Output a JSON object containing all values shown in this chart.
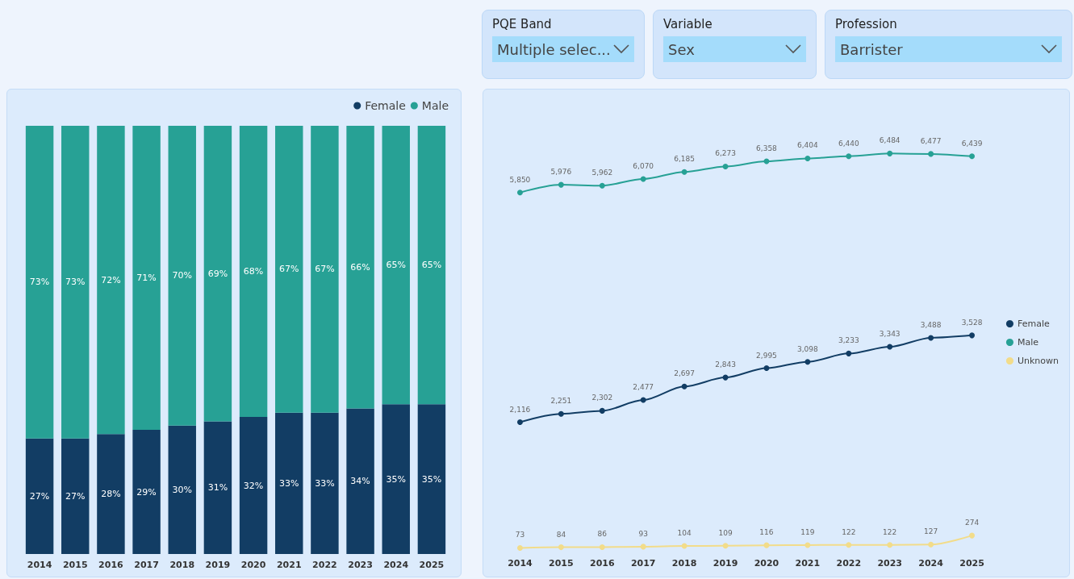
{
  "chart_data": [
    {
      "type": "other",
      "annotations": [
        "PQE Band",
        "Multiple selec...",
        "Variable",
        "Sex",
        "Profession",
        "Barrister"
      ]
    },
    {
      "type": "bar",
      "stacked": true,
      "legend": "top right",
      "categories": [
        "2014",
        "2015",
        "2016",
        "2017",
        "2018",
        "2019",
        "2020",
        "2021",
        "2022",
        "2023",
        "2024",
        "2025"
      ],
      "series": [
        {
          "name": "Female",
          "color": "#123d64",
          "values": [
            27,
            27,
            28,
            29,
            30,
            31,
            32,
            33,
            33,
            34,
            35,
            35
          ],
          "value_labels": [
            "27%",
            "27%",
            "28%",
            "29%",
            "30%",
            "31%",
            "32%",
            "33%",
            "33%",
            "34%",
            "35%",
            "35%"
          ]
        },
        {
          "name": "Male",
          "color": "#27a195",
          "values": [
            73,
            73,
            72,
            71,
            70,
            69,
            68,
            67,
            67,
            66,
            65,
            65
          ],
          "value_labels": [
            "73%",
            "73%",
            "72%",
            "71%",
            "70%",
            "69%",
            "68%",
            "67%",
            "67%",
            "66%",
            "65%",
            "65%"
          ]
        }
      ]
    },
    {
      "type": "line",
      "marker": "circle",
      "legend": "right",
      "categories": [
        "2014",
        "2015",
        "2016",
        "2017",
        "2018",
        "2019",
        "2020",
        "2021",
        "2022",
        "2023",
        "2024",
        "2025"
      ],
      "series": [
        {
          "name": "Female",
          "color": "#123d64",
          "values": [
            2116,
            2251,
            2302,
            2477,
            2697,
            2843,
            2995,
            3098,
            3233,
            3343,
            3488,
            3528
          ],
          "value_labels": [
            "2,116",
            "2,251",
            "2,302",
            "2,477",
            "2,697",
            "2,843",
            "2,995",
            "3,098",
            "3,233",
            "3,343",
            "3,488",
            "3,528"
          ]
        },
        {
          "name": "Male",
          "color": "#27a195",
          "values": [
            5850,
            5976,
            5962,
            6070,
            6185,
            6273,
            6358,
            6404,
            6440,
            6484,
            6477,
            6439
          ],
          "value_labels": [
            "5,850",
            "5,976",
            "5,962",
            "6,070",
            "6,185",
            "6,273",
            "6,358",
            "6,404",
            "6,440",
            "6,484",
            "6,477",
            "6,439"
          ]
        },
        {
          "name": "Unknown",
          "color": "#f2dc8a",
          "values": [
            73,
            84,
            86,
            93,
            104,
            109,
            116,
            119,
            122,
            122,
            127,
            274
          ],
          "value_labels": [
            "73",
            "84",
            "86",
            "93",
            "104",
            "109",
            "116",
            "119",
            "122",
            "122",
            "127",
            "274"
          ]
        }
      ]
    }
  ]
}
